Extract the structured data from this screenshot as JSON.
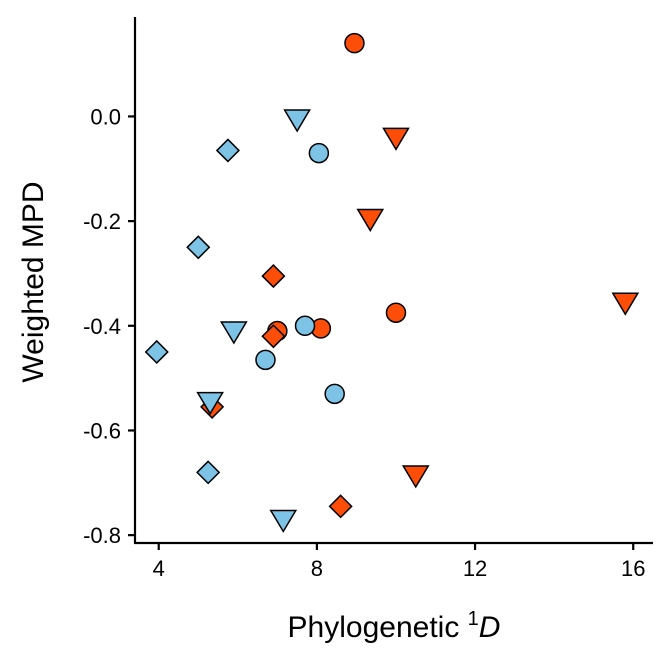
{
  "chart_data": {
    "type": "scatter",
    "title": "",
    "xlabel": {
      "prefix": "Phylogenetic ",
      "superscript": "1",
      "italic": "D"
    },
    "ylabel": "Weighted MPD",
    "xlim": [
      3.4,
      16.5
    ],
    "ylim": [
      -0.815,
      0.19
    ],
    "xticks": [
      4,
      8,
      12,
      16
    ],
    "xtick_labels": [
      "4",
      "8",
      "12",
      "16"
    ],
    "yticks": [
      0.0,
      -0.2,
      -0.4,
      -0.6,
      -0.8
    ],
    "ytick_labels": [
      "0.0",
      "-0.2",
      "-0.4",
      "-0.6",
      "-0.8"
    ],
    "grid": false,
    "legend": "none",
    "colors": {
      "blue": "#7cc3e6",
      "orange": "#fc4e08"
    },
    "series": [
      {
        "color": "orange",
        "marker": "circle",
        "points": [
          [
            8.95,
            0.14
          ],
          [
            7.0,
            -0.41
          ],
          [
            8.1,
            -0.405
          ],
          [
            10.0,
            -0.375
          ]
        ]
      },
      {
        "color": "blue",
        "marker": "circle",
        "points": [
          [
            8.05,
            -0.07
          ],
          [
            7.7,
            -0.4
          ],
          [
            6.7,
            -0.465
          ],
          [
            8.45,
            -0.53
          ]
        ]
      },
      {
        "color": "blue",
        "marker": "diamond",
        "points": [
          [
            5.75,
            -0.065
          ],
          [
            5.0,
            -0.25
          ],
          [
            3.95,
            -0.45
          ],
          [
            5.25,
            -0.68
          ]
        ]
      },
      {
        "color": "orange",
        "marker": "diamond",
        "points": [
          [
            6.9,
            -0.305
          ],
          [
            6.9,
            -0.42
          ],
          [
            5.35,
            -0.555
          ],
          [
            8.6,
            -0.745
          ]
        ]
      },
      {
        "color": "blue",
        "marker": "triangle-down",
        "points": [
          [
            7.5,
            -0.005
          ],
          [
            5.9,
            -0.41
          ],
          [
            5.3,
            -0.545
          ],
          [
            7.15,
            -0.77
          ]
        ]
      },
      {
        "color": "orange",
        "marker": "triangle-down",
        "points": [
          [
            10.0,
            -0.04
          ],
          [
            9.35,
            -0.195
          ],
          [
            15.8,
            -0.355
          ],
          [
            10.5,
            -0.685
          ]
        ]
      }
    ]
  }
}
